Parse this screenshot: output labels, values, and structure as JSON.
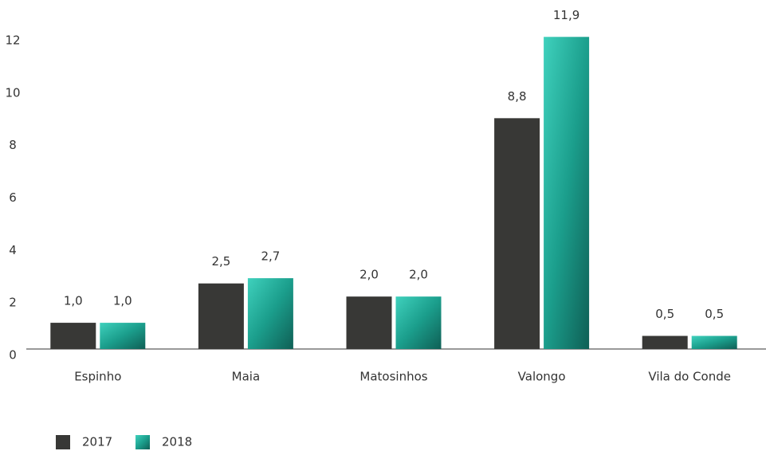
{
  "chart_data": {
    "type": "bar",
    "categories": [
      "Espinho",
      "Maia",
      "Matosinhos",
      "Valongo",
      "Vila do Conde"
    ],
    "series": [
      {
        "name": "2017",
        "color": "#383836",
        "values": [
          1.0,
          2.5,
          2.0,
          8.8,
          0.5
        ],
        "value_labels": [
          "1,0",
          "2,5",
          "2,0",
          "8,8",
          "0,5"
        ]
      },
      {
        "name": "2018",
        "color": "#1b9e8c",
        "values": [
          1.0,
          2.7,
          2.0,
          11.9,
          0.5
        ],
        "value_labels": [
          "1,0",
          "2,7",
          "2,0",
          "11,9",
          "0,5"
        ]
      }
    ],
    "ylim": [
      0,
      12
    ],
    "yticks": [
      0,
      2,
      4,
      6,
      8,
      10,
      12
    ],
    "grid": false,
    "legend": "bottom-left"
  }
}
